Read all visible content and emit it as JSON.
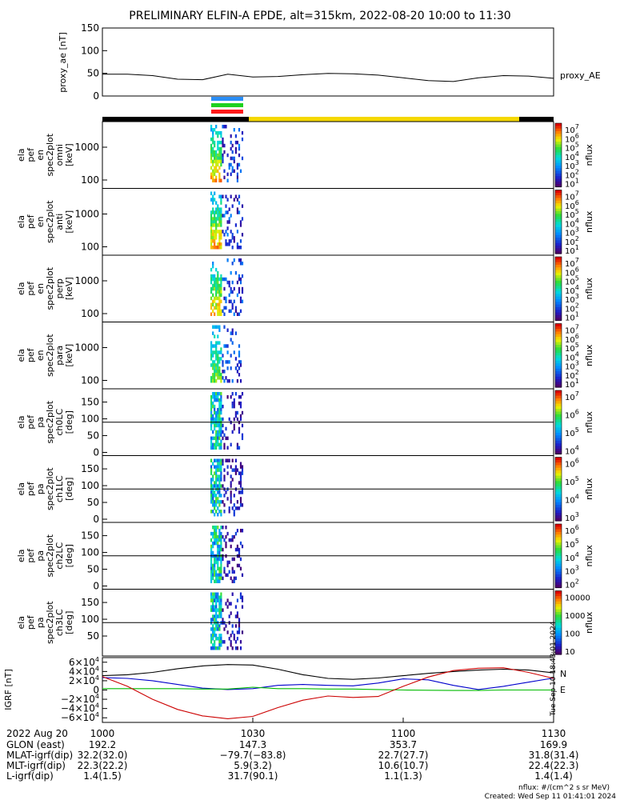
{
  "title": "PRELIMINARY ELFIN-A EPDE, alt=315km, 2022-08-20 10:00 to 11:30",
  "colors": {
    "black": "#000000",
    "yellow": "#f5d800",
    "bar_blue": "#2a8df5",
    "bar_green": "#1fd11f",
    "bar_red": "#ff1a1a",
    "geo_x": "#0000cc",
    "geo_y": "#00bb00",
    "geo_z": "#cc0000",
    "geo_total": "#000000",
    "annot_n": "#cc0000",
    "annot_e": "#33cc33"
  },
  "chart_data": [
    {
      "type": "line",
      "ylabel": "proxy_ae [nT]",
      "ylim": [
        0,
        150
      ],
      "y_ticks": [
        "150",
        "100",
        "50",
        "0"
      ],
      "series": [
        {
          "name": "proxy_AE",
          "x": [
            "10:00",
            "10:05",
            "10:10",
            "10:15",
            "10:20",
            "10:25",
            "10:30",
            "10:35",
            "10:40",
            "10:45",
            "10:50",
            "10:55",
            "11:00",
            "11:05",
            "11:10",
            "11:15",
            "11:20",
            "11:25",
            "11:30"
          ],
          "values": [
            48,
            48,
            45,
            37,
            36,
            48,
            42,
            43,
            47,
            50,
            49,
            46,
            40,
            34,
            32,
            40,
            45,
            44,
            39
          ]
        }
      ]
    },
    {
      "type": "heatmap",
      "panels": [
        {
          "ylabel": [
            "ela",
            "pef",
            "en",
            "spec2plot",
            "omni",
            "[keV]"
          ],
          "y_scale": "log",
          "y_ticks": [
            "1000",
            "100"
          ],
          "colorbar_ticks": [
            "10^7",
            "10^6",
            "10^5",
            "10^4",
            "10^3",
            "10^2",
            "10^1"
          ],
          "zlabel": "nflux"
        },
        {
          "ylabel": [
            "ela",
            "pef",
            "en",
            "spec2plot",
            "anti",
            "[keV]"
          ],
          "y_scale": "log",
          "y_ticks": [
            "1000",
            "100"
          ],
          "colorbar_ticks": [
            "10^7",
            "10^6",
            "10^5",
            "10^4",
            "10^3",
            "10^2",
            "10^1"
          ],
          "zlabel": "nflux"
        },
        {
          "ylabel": [
            "ela",
            "pef",
            "en",
            "spec2plot",
            "perp",
            "[keV]"
          ],
          "y_scale": "log",
          "y_ticks": [
            "1000",
            "100"
          ],
          "colorbar_ticks": [
            "10^7",
            "10^6",
            "10^5",
            "10^4",
            "10^3",
            "10^2",
            "10^1"
          ],
          "zlabel": "nflux"
        },
        {
          "ylabel": [
            "ela",
            "pef",
            "en",
            "spec2plot",
            "para",
            "[keV]"
          ],
          "y_scale": "log",
          "y_ticks": [
            "1000",
            "100"
          ],
          "colorbar_ticks": [
            "10^7",
            "10^6",
            "10^5",
            "10^4",
            "10^3",
            "10^2",
            "10^1"
          ],
          "zlabel": "nflux"
        },
        {
          "ylabel": [
            "ela",
            "pef",
            "pa",
            "spec2plot",
            "ch0LC",
            "[deg]"
          ],
          "ylim": [
            0,
            180
          ],
          "y_ticks": [
            "150",
            "100",
            "50",
            "0"
          ],
          "colorbar_ticks": [
            "10^7",
            "10^6",
            "10^5",
            "10^4"
          ],
          "zlabel": "nflux"
        },
        {
          "ylabel": [
            "ela",
            "pef",
            "pa",
            "spec2plot",
            "ch1LC",
            "[deg]"
          ],
          "ylim": [
            0,
            180
          ],
          "y_ticks": [
            "150",
            "100",
            "50",
            "0"
          ],
          "colorbar_ticks": [
            "10^6",
            "10^5",
            "10^4",
            "10^3"
          ],
          "zlabel": "nflux"
        },
        {
          "ylabel": [
            "ela",
            "pef",
            "pa",
            "spec2plot",
            "ch2LC",
            "[deg]"
          ],
          "ylim": [
            0,
            180
          ],
          "y_ticks": [
            "150",
            "100",
            "50",
            "0"
          ],
          "colorbar_ticks": [
            "10^6",
            "10^5",
            "10^4",
            "10^3",
            "10^2"
          ],
          "zlabel": "nflux"
        },
        {
          "ylabel": [
            "ela",
            "pef",
            "pa",
            "spec2plot",
            "ch3LC",
            "[deg]"
          ],
          "ylim": [
            0,
            180
          ],
          "y_ticks": [
            "150",
            "100",
            "50"
          ],
          "colorbar_ticks": [
            "10000",
            "1000",
            "100",
            "10"
          ],
          "zlabel": "nflux"
        }
      ]
    },
    {
      "type": "line",
      "ylabel": "IGRF [nT]",
      "ylim": [
        -70000,
        70000
      ],
      "y_ticks": [
        "6×10^4",
        "4×10^4",
        "2×10^4",
        "0",
        "−2×10^4",
        "−4×10^4",
        "−6×10^4"
      ],
      "legend": [
        "N",
        "E"
      ],
      "side_note": "Tue Sep 10 18:43:01 2024",
      "x": [
        "10:00",
        "10:05",
        "10:10",
        "10:15",
        "10:20",
        "10:25",
        "10:30",
        "10:35",
        "10:40",
        "10:45",
        "10:50",
        "10:55",
        "11:00",
        "11:05",
        "11:10",
        "11:15",
        "11:20",
        "11:25",
        "11:30"
      ],
      "series": [
        {
          "values": [
            31000,
            33000,
            38000,
            46000,
            52000,
            55000,
            54000,
            45000,
            33000,
            25000,
            23000,
            26000,
            31000,
            36000,
            40000,
            43000,
            45000,
            43000,
            37000
          ]
        },
        {
          "values": [
            27000,
            25000,
            20000,
            12000,
            4000,
            1000,
            3000,
            10000,
            12000,
            10000,
            9000,
            15000,
            24000,
            22000,
            10000,
            1000,
            8000,
            17000,
            26000
          ]
        },
        {
          "values": [
            3000,
            3000,
            3000,
            3000,
            2000,
            2000,
            6000,
            3000,
            3000,
            2000,
            2000,
            1000,
            0,
            -500,
            -1000,
            -1000,
            0,
            0,
            0
          ]
        },
        {
          "values": [
            29000,
            8000,
            -20000,
            -42000,
            -56000,
            -62000,
            -57000,
            -38000,
            -22000,
            -13000,
            -16000,
            -14000,
            8000,
            28000,
            42000,
            47000,
            48000,
            38000,
            25000
          ]
        }
      ]
    }
  ],
  "time_ticks": [
    "1000",
    "1030",
    "1100",
    "1130"
  ],
  "title_side": "proxy_AE",
  "footer": {
    "date": "2022 Aug 20",
    "rows": [
      {
        "label": "GLON (east)",
        "values": [
          "192.2",
          "147.3",
          "353.7",
          "169.9"
        ]
      },
      {
        "label": "MLAT-igrf(dip)",
        "values": [
          "32.2(32.0)",
          "−79.7(−83.8)",
          "22.7(27.7)",
          "31.8(31.4)"
        ]
      },
      {
        "label": "MLT-igrf(dip)",
        "values": [
          "22.3(22.2)",
          "5.9(3.2)",
          "10.6(10.7)",
          "22.4(22.3)"
        ]
      },
      {
        "label": "L-igrf(dip)",
        "values": [
          "1.4(1.5)",
          "31.7(90.1)",
          "1.1(1.3)",
          "1.4(1.4)"
        ]
      }
    ],
    "unit_note": "nflux: #/(cm^2 s sr MeV)",
    "created": "Created: Wed Sep 11 01:41:01 2024"
  }
}
